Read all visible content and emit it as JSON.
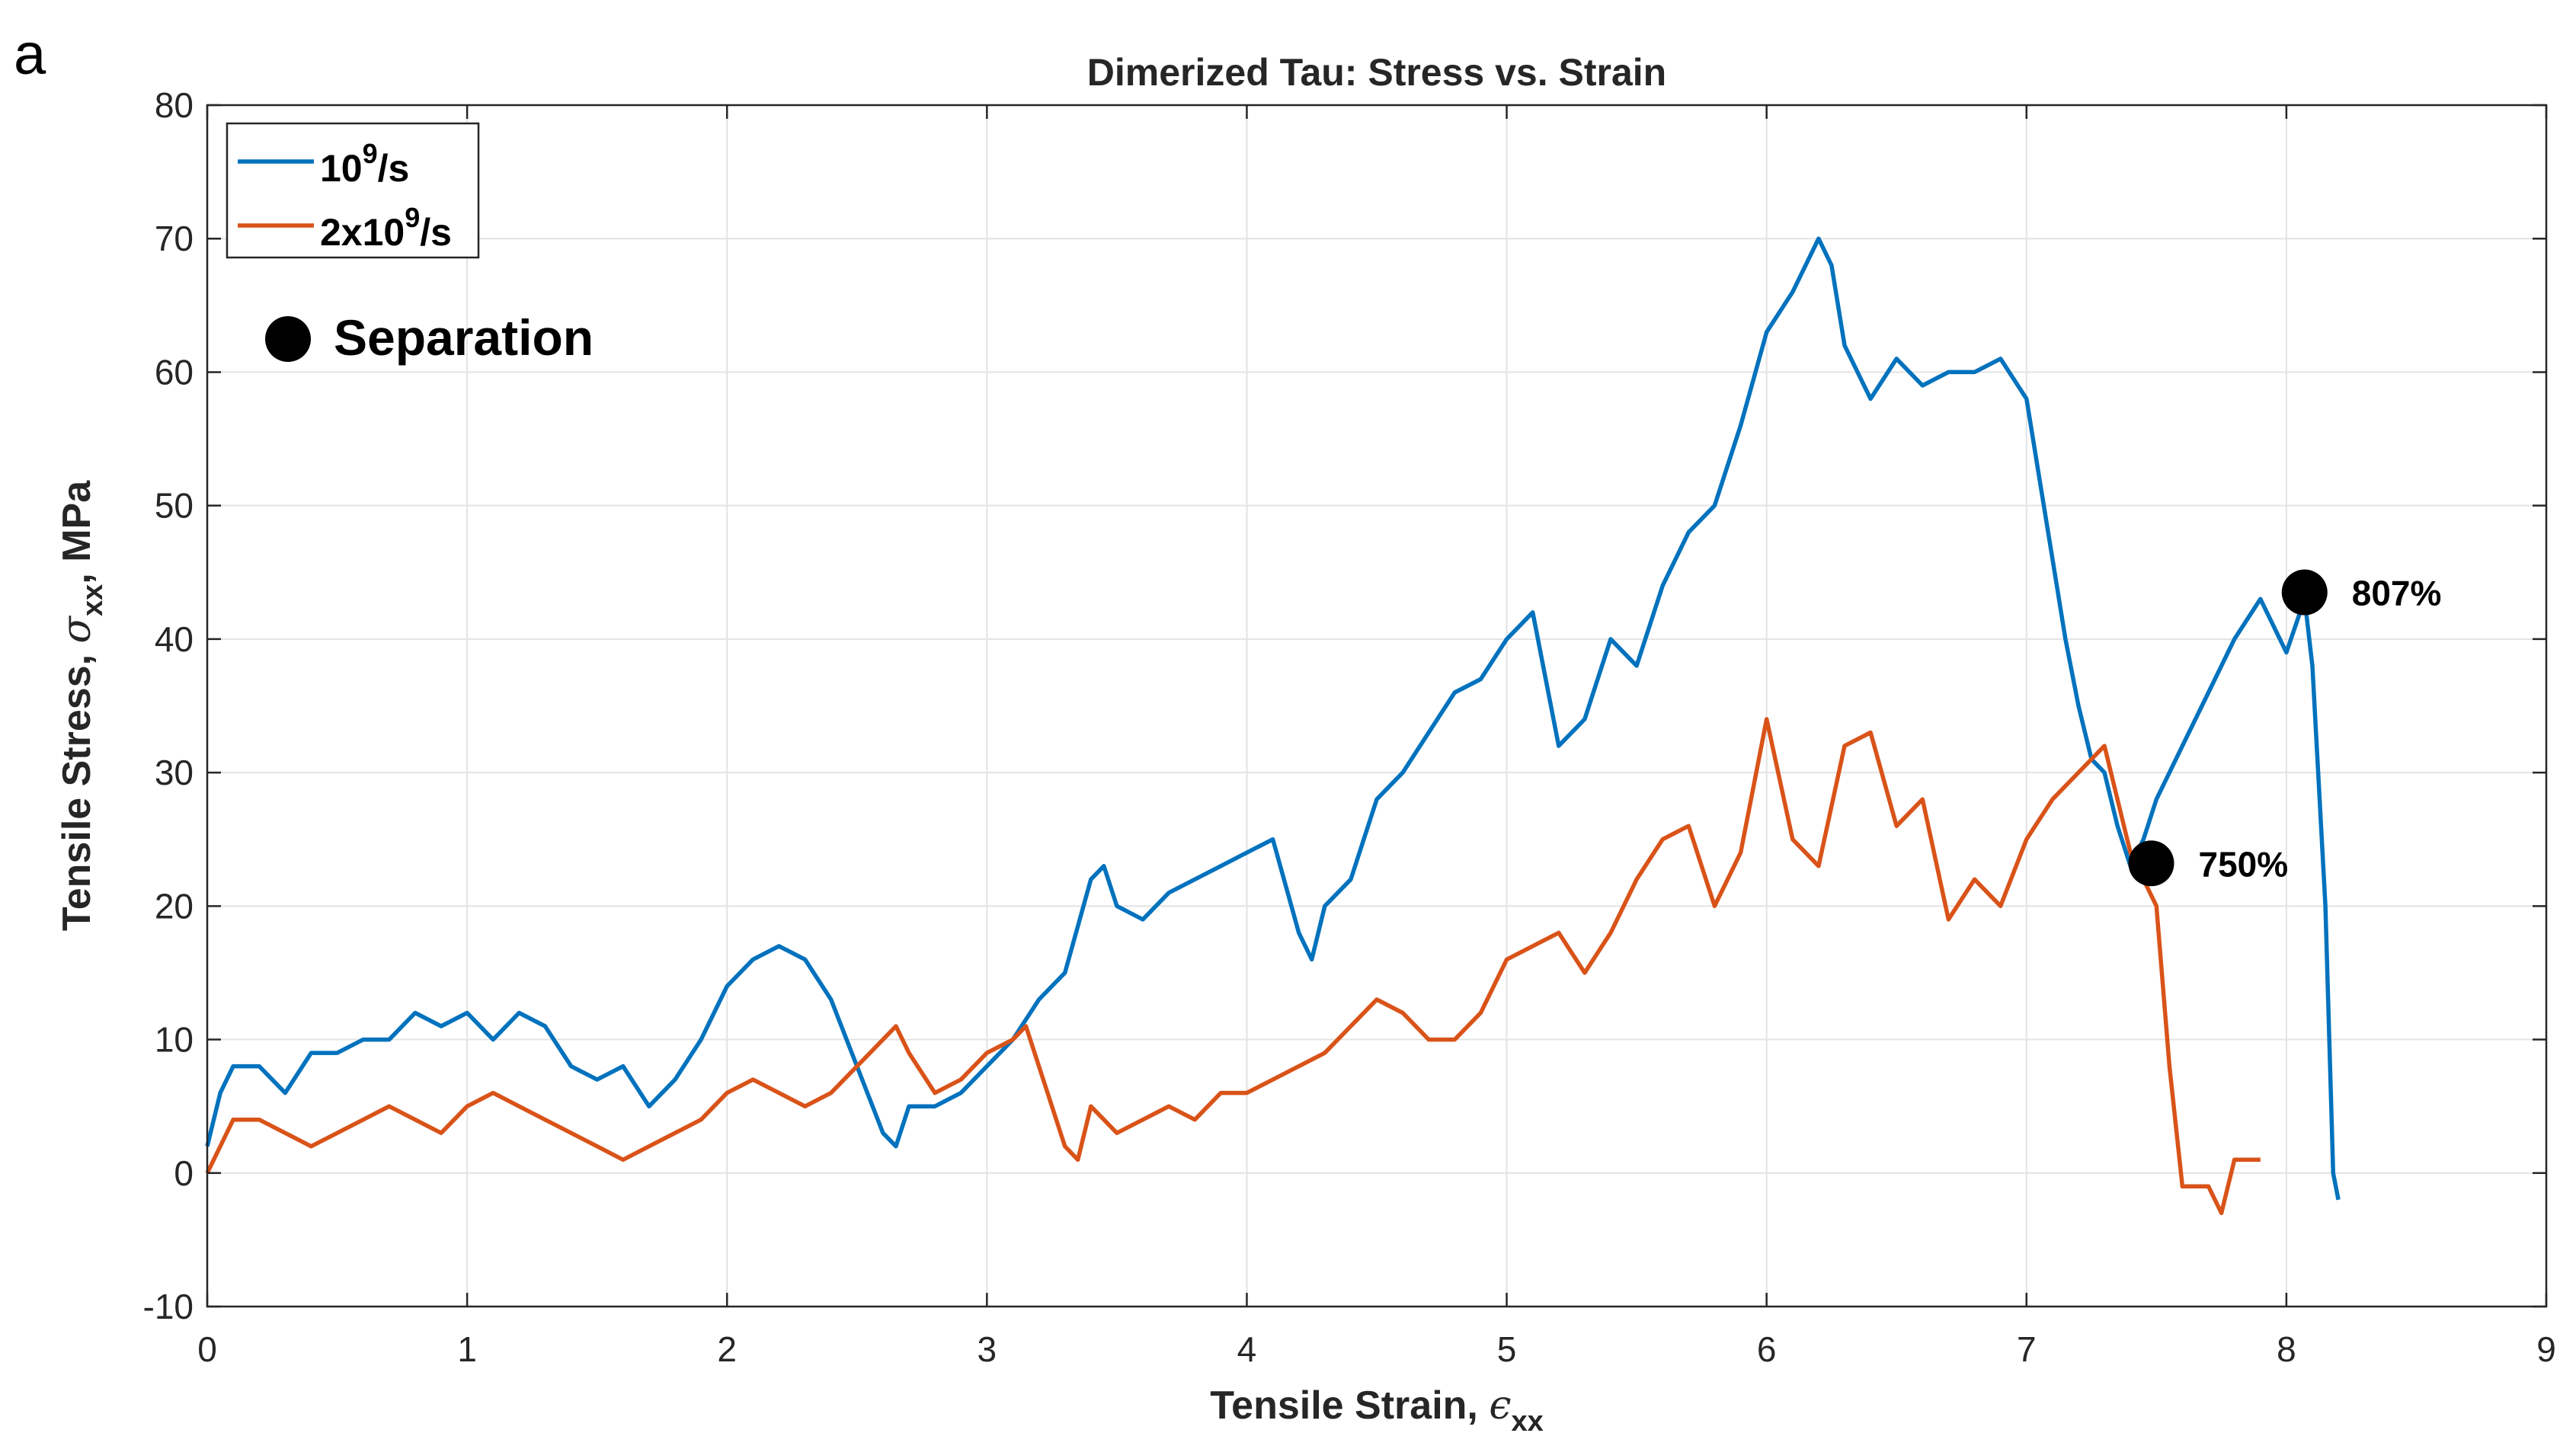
{
  "panel_label": "a",
  "chart_data": {
    "type": "line",
    "title": "Dimerized Tau: Stress vs. Strain",
    "xlabel": "Tensile Strain, ",
    "xlabel_symbol": "ϵ",
    "xlabel_sub": "xx",
    "ylabel": "Tensile Stress, ",
    "ylabel_symbol": "σ",
    "ylabel_sub": "xx",
    "ylabel_tail": ", MPa",
    "xlim": [
      0,
      9
    ],
    "ylim": [
      -10,
      80
    ],
    "xticks": [
      0,
      1,
      2,
      3,
      4,
      5,
      6,
      7,
      8,
      9
    ],
    "yticks": [
      -10,
      0,
      10,
      20,
      30,
      40,
      50,
      60,
      70,
      80
    ],
    "grid": true,
    "legend_position": "top-left",
    "series": [
      {
        "name": "10⁹/s",
        "legend_base": "10",
        "legend_sup": "9",
        "legend_tail": "/s",
        "color": "#0072bd",
        "x": [
          0,
          0.05,
          0.1,
          0.2,
          0.3,
          0.4,
          0.5,
          0.6,
          0.7,
          0.8,
          0.9,
          1.0,
          1.1,
          1.2,
          1.3,
          1.4,
          1.5,
          1.6,
          1.7,
          1.8,
          1.9,
          2.0,
          2.1,
          2.2,
          2.3,
          2.4,
          2.5,
          2.6,
          2.65,
          2.7,
          2.8,
          2.9,
          3.0,
          3.1,
          3.2,
          3.3,
          3.4,
          3.45,
          3.5,
          3.6,
          3.7,
          3.8,
          3.9,
          4.0,
          4.1,
          4.2,
          4.25,
          4.3,
          4.4,
          4.5,
          4.6,
          4.7,
          4.8,
          4.9,
          5.0,
          5.1,
          5.2,
          5.3,
          5.4,
          5.5,
          5.6,
          5.7,
          5.8,
          5.9,
          6.0,
          6.1,
          6.2,
          6.25,
          6.3,
          6.4,
          6.5,
          6.6,
          6.7,
          6.8,
          6.9,
          7.0,
          7.05,
          7.1,
          7.15,
          7.2,
          7.25,
          7.3,
          7.35,
          7.4,
          7.45,
          7.5,
          7.6,
          7.7,
          7.8,
          7.9,
          8.0,
          8.07,
          8.1,
          8.15,
          8.18,
          8.2
        ],
        "y": [
          2,
          6,
          8,
          8,
          6,
          9,
          9,
          10,
          10,
          12,
          11,
          12,
          10,
          12,
          11,
          8,
          7,
          8,
          5,
          7,
          10,
          14,
          16,
          17,
          16,
          13,
          8,
          3,
          2,
          5,
          5,
          6,
          8,
          10,
          13,
          15,
          22,
          23,
          20,
          19,
          21,
          22,
          23,
          24,
          25,
          18,
          16,
          20,
          22,
          28,
          30,
          33,
          36,
          37,
          40,
          42,
          32,
          34,
          40,
          38,
          44,
          48,
          50,
          56,
          63,
          66,
          70,
          68,
          62,
          58,
          61,
          59,
          60,
          60,
          61,
          58,
          52,
          46,
          40,
          35,
          31,
          30,
          26,
          23,
          25,
          28,
          32,
          36,
          40,
          43,
          39,
          43,
          38,
          20,
          0,
          -2
        ]
      },
      {
        "name": "2x10⁹/s",
        "legend_base": "2x10",
        "legend_sup": "9",
        "legend_tail": "/s",
        "color": "#d95319",
        "x": [
          0,
          0.05,
          0.1,
          0.2,
          0.3,
          0.4,
          0.5,
          0.6,
          0.7,
          0.8,
          0.9,
          1.0,
          1.1,
          1.2,
          1.3,
          1.4,
          1.5,
          1.6,
          1.7,
          1.8,
          1.9,
          2.0,
          2.1,
          2.2,
          2.3,
          2.4,
          2.5,
          2.6,
          2.65,
          2.7,
          2.8,
          2.9,
          3.0,
          3.1,
          3.15,
          3.2,
          3.3,
          3.35,
          3.4,
          3.5,
          3.6,
          3.7,
          3.8,
          3.9,
          4.0,
          4.1,
          4.2,
          4.3,
          4.4,
          4.5,
          4.6,
          4.7,
          4.8,
          4.9,
          5.0,
          5.1,
          5.2,
          5.3,
          5.4,
          5.5,
          5.6,
          5.7,
          5.8,
          5.9,
          6.0,
          6.1,
          6.2,
          6.3,
          6.4,
          6.5,
          6.6,
          6.7,
          6.8,
          6.9,
          7.0,
          7.1,
          7.2,
          7.3,
          7.4,
          7.45,
          7.5,
          7.55,
          7.6,
          7.7,
          7.75,
          7.8,
          7.9
        ],
        "y": [
          0,
          2,
          4,
          4,
          3,
          2,
          3,
          4,
          5,
          4,
          3,
          5,
          6,
          5,
          4,
          3,
          2,
          1,
          2,
          3,
          4,
          6,
          7,
          6,
          5,
          6,
          8,
          10,
          11,
          9,
          6,
          7,
          9,
          10,
          11,
          8,
          2,
          1,
          5,
          3,
          4,
          5,
          4,
          6,
          6,
          7,
          8,
          9,
          11,
          13,
          12,
          10,
          10,
          12,
          16,
          17,
          18,
          15,
          18,
          22,
          25,
          26,
          20,
          24,
          34,
          25,
          23,
          32,
          33,
          26,
          28,
          19,
          22,
          20,
          25,
          28,
          30,
          32,
          24,
          22,
          20,
          8,
          -1,
          -1,
          -3,
          1,
          1
        ]
      }
    ],
    "annotations": [
      {
        "label": "807%",
        "x": 8.07,
        "y": 43.5
      },
      {
        "label": "750%",
        "x": 7.48,
        "y": 23.2
      }
    ],
    "marker_legend": "Separation"
  }
}
